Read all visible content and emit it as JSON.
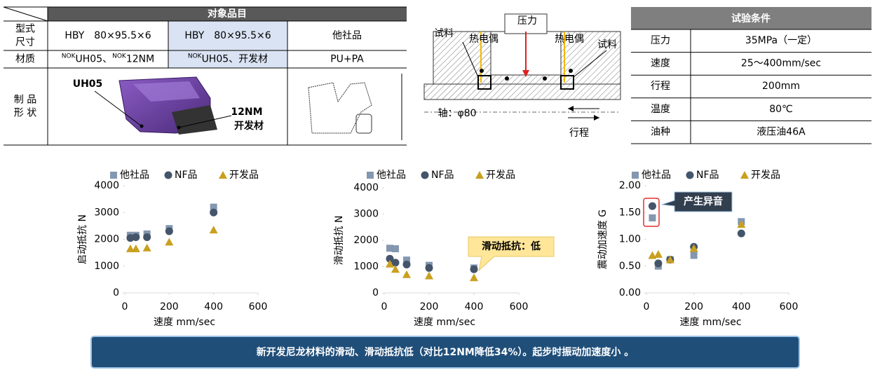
{
  "product_table": {
    "header": "对象品目",
    "rows": [
      {
        "label": [
          "型式",
          "尺寸"
        ],
        "cells": [
          [
            {
              "text": "HBY　80×95.5×6"
            }
          ],
          [
            {
              "text": "HBY　80×95.5×6"
            }
          ],
          [
            {
              "text": "他社品"
            }
          ]
        ]
      },
      {
        "label": [
          "材质"
        ],
        "cells": [
          [
            {
              "sup": "NOK",
              "text": "UH05、"
            },
            {
              "sup": "NOK",
              "text": "12NM"
            }
          ],
          [
            {
              "sup": "NOK",
              "text": "UH05、开发材"
            }
          ],
          [
            {
              "text": "PU+PA"
            }
          ]
        ]
      },
      {
        "label": [
          "制 品",
          "形 状"
        ]
      }
    ],
    "shape_labels": {
      "left": "UH05",
      "right": [
        "12NM",
        "开发材"
      ]
    }
  },
  "diagram": {
    "pressure": "压力",
    "sample_left": "试料",
    "thermo_left": "热电偶",
    "thermo_right": "热电偶",
    "sample_right": "试料",
    "shaft": "轴：φ80",
    "stroke": "行程"
  },
  "conditions_table": {
    "header": "试验条件",
    "rows": [
      [
        "压力",
        "35MPa（一定）"
      ],
      [
        "速度",
        "25～400mm/sec"
      ],
      [
        "行程",
        "200mm"
      ],
      [
        "温度",
        "80℃"
      ],
      [
        "油种",
        "液压油46A"
      ]
    ]
  },
  "chart_data": [
    {
      "type": "scatter",
      "ylabel": "启动抵抗 N",
      "xlabel": "速度 mm/sec",
      "x": [
        25,
        50,
        100,
        200,
        400
      ],
      "xlim": [
        0,
        600
      ],
      "xticks": [
        0,
        200,
        400,
        600
      ],
      "ylim": [
        0,
        4000
      ],
      "yticks": [
        0,
        1000,
        2000,
        3000,
        4000
      ],
      "series": [
        {
          "name": "他社品",
          "color": "#8497b0",
          "marker": "square",
          "values": [
            2150,
            2150,
            2200,
            2400,
            3200
          ]
        },
        {
          "name": "NF品",
          "color": "#44546a",
          "marker": "circle",
          "values": [
            2050,
            2080,
            2080,
            2300,
            3000
          ]
        },
        {
          "name": "开发品",
          "color": "#c9a01e",
          "marker": "triangle",
          "values": [
            1650,
            1650,
            1680,
            1900,
            2350
          ]
        }
      ]
    },
    {
      "type": "scatter",
      "ylabel": "滑动抵抗 N",
      "xlabel": "速度 mm/sec",
      "annotation": "滑动抵抗：低",
      "x": [
        25,
        50,
        100,
        200,
        400
      ],
      "xlim": [
        0,
        600
      ],
      "xticks": [
        0,
        200,
        400,
        600
      ],
      "ylim": [
        0,
        4000
      ],
      "yticks": [
        0,
        1000,
        2000,
        3000,
        4000
      ],
      "series": [
        {
          "name": "他社品",
          "color": "#8497b0",
          "marker": "square",
          "values": [
            1700,
            1680,
            1250,
            1050,
            950
          ]
        },
        {
          "name": "NF品",
          "color": "#44546a",
          "marker": "circle",
          "values": [
            1300,
            1150,
            1080,
            950,
            900
          ]
        },
        {
          "name": "开发品",
          "color": "#c9a01e",
          "marker": "triangle",
          "values": [
            1100,
            900,
            700,
            650,
            580
          ]
        }
      ]
    },
    {
      "type": "scatter",
      "ylabel": "震动加速度 G",
      "xlabel": "速度 mm/sec",
      "annotation": "产生异音",
      "x": [
        25,
        50,
        100,
        200,
        400
      ],
      "xlim": [
        0,
        600
      ],
      "xticks": [
        0,
        200,
        400,
        600
      ],
      "ylim": [
        0,
        2
      ],
      "yticks": [
        {
          "value": 0,
          "label": "0.00"
        },
        {
          "value": 0.5,
          "label": "0.50"
        },
        {
          "value": 1,
          "label": "1.00"
        },
        {
          "value": 1.5,
          "label": "1.50"
        },
        {
          "value": 2,
          "label": "2.00"
        }
      ],
      "series": [
        {
          "name": "他社品",
          "color": "#8497b0",
          "marker": "square",
          "values": [
            1.4,
            0.5,
            0.62,
            0.7,
            1.33
          ]
        },
        {
          "name": "NF品",
          "color": "#44546a",
          "marker": "circle",
          "values": [
            1.62,
            0.55,
            0.62,
            0.86,
            1.11
          ]
        },
        {
          "name": "开发品",
          "color": "#c9a01e",
          "marker": "triangle",
          "values": [
            0.7,
            0.72,
            0.62,
            0.83,
            1.28
          ]
        }
      ]
    }
  ],
  "banner": "新开发尼龙材料的滑动、滑动抵抗低（对比12NM降低34%）。起步时振动加速度小 。"
}
